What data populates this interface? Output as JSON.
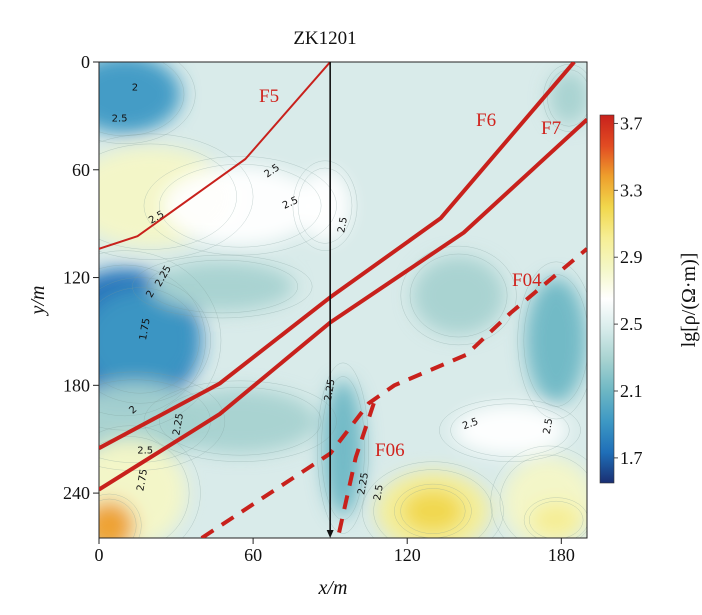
{
  "chart_data": {
    "type": "heatmap",
    "title": "ZK1201",
    "xlabel": "x/m",
    "ylabel": "y/m",
    "xlim": [
      0,
      190
    ],
    "ylim": [
      265,
      0
    ],
    "x_ticks": [
      0,
      60,
      120,
      180
    ],
    "y_ticks": [
      0,
      60,
      120,
      180,
      240
    ],
    "colorbar": {
      "label": "lg[ρ/(Ω·m)]",
      "range": [
        1.55,
        3.75
      ],
      "ticks": [
        3.7,
        3.3,
        2.9,
        2.5,
        2.1,
        1.7
      ],
      "colors": [
        "#1a2f72",
        "#1f6fb8",
        "#3d98c4",
        "#6db7c4",
        "#a6d2d0",
        "#d6ebea",
        "#ffffff",
        "#f4f7c6",
        "#f6ee94",
        "#f1d74c",
        "#ee9f2c",
        "#e24b22",
        "#c8211c"
      ]
    },
    "borehole": {
      "x": 90,
      "name": "ZK1201"
    },
    "faults": [
      {
        "name": "F5",
        "style": "solid",
        "width": "thin",
        "points": [
          [
            0,
            104
          ],
          [
            15,
            97
          ],
          [
            57,
            54
          ],
          [
            90,
            0
          ]
        ]
      },
      {
        "name": "F6",
        "style": "solid",
        "width": "thick",
        "points": [
          [
            0,
            215
          ],
          [
            47,
            179
          ],
          [
            90,
            131
          ],
          [
            133,
            87
          ],
          [
            185,
            0
          ]
        ]
      },
      {
        "name": "F7",
        "style": "solid",
        "width": "thick",
        "points": [
          [
            0,
            238
          ],
          [
            47,
            196
          ],
          [
            90,
            145
          ],
          [
            142,
            95
          ],
          [
            190,
            32
          ]
        ]
      },
      {
        "name": "F04",
        "style": "dashed",
        "width": "thick",
        "points": [
          [
            40,
            265
          ],
          [
            90,
            218
          ],
          [
            105,
            190
          ],
          [
            115,
            180
          ],
          [
            143,
            163
          ],
          [
            160,
            140
          ],
          [
            190,
            104
          ]
        ]
      },
      {
        "name": "F06",
        "style": "dashed",
        "width": "thick",
        "points": [
          [
            107,
            190
          ],
          [
            100,
            220
          ],
          [
            93,
            265
          ]
        ]
      }
    ],
    "contour_labels": [
      "2",
      "2.5",
      "2.5",
      "2.5",
      "2.5",
      "2.25",
      "2",
      "1.75",
      "2",
      "2.25",
      "2.5",
      "2.75",
      "2.25",
      "2.25",
      "2.5",
      "2.5",
      "2.5",
      "2.5"
    ],
    "resistivity_zones": [
      {
        "cx": 10,
        "cy": 18,
        "rx": 22,
        "ry": 22,
        "value": 2.0
      },
      {
        "cx": 10,
        "cy": 155,
        "rx": 30,
        "ry": 40,
        "value": 1.72
      },
      {
        "cx": 16,
        "cy": 155,
        "rx": 22,
        "ry": 28,
        "value": 1.85
      },
      {
        "cx": 14,
        "cy": 200,
        "rx": 28,
        "ry": 22,
        "value": 2.2
      },
      {
        "cx": 48,
        "cy": 125,
        "rx": 28,
        "ry": 14,
        "value": 2.2
      },
      {
        "cx": 55,
        "cy": 200,
        "rx": 30,
        "ry": 18,
        "value": 2.3
      },
      {
        "cx": 95,
        "cy": 215,
        "rx": 8,
        "ry": 38,
        "value": 2.05
      },
      {
        "cx": 178,
        "cy": 155,
        "rx": 12,
        "ry": 35,
        "value": 2.15
      },
      {
        "cx": 183,
        "cy": 20,
        "rx": 8,
        "ry": 15,
        "value": 2.2
      },
      {
        "cx": 140,
        "cy": 130,
        "rx": 18,
        "ry": 22,
        "value": 2.3
      },
      {
        "cx": 20,
        "cy": 75,
        "rx": 32,
        "ry": 28,
        "value": 2.75
      },
      {
        "cx": 55,
        "cy": 80,
        "rx": 30,
        "ry": 22,
        "value": 2.65
      },
      {
        "cx": 88,
        "cy": 80,
        "rx": 10,
        "ry": 20,
        "value": 2.6
      },
      {
        "cx": 12,
        "cy": 240,
        "rx": 22,
        "ry": 30,
        "value": 2.9
      },
      {
        "cx": 4,
        "cy": 258,
        "rx": 10,
        "ry": 14,
        "value": 3.4
      },
      {
        "cx": 130,
        "cy": 250,
        "rx": 22,
        "ry": 22,
        "value": 2.95
      },
      {
        "cx": 130,
        "cy": 250,
        "rx": 12,
        "ry": 12,
        "value": 3.2
      },
      {
        "cx": 175,
        "cy": 245,
        "rx": 18,
        "ry": 25,
        "value": 2.85
      },
      {
        "cx": 178,
        "cy": 255,
        "rx": 10,
        "ry": 10,
        "value": 3.1
      },
      {
        "cx": 160,
        "cy": 205,
        "rx": 22,
        "ry": 14,
        "value": 2.65
      }
    ]
  }
}
